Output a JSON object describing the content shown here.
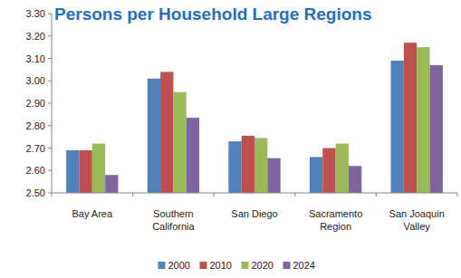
{
  "chart_data": {
    "type": "bar",
    "title": "Persons per Household Large Regions",
    "categories": [
      "Bay Area",
      "Southern California",
      "San Diego",
      "Sacramento Region",
      "San Joaquin Valley"
    ],
    "series": [
      {
        "name": "2000",
        "color": "#4f81bd",
        "values": [
          2.69,
          3.01,
          2.73,
          2.66,
          3.09
        ]
      },
      {
        "name": "2010",
        "color": "#c0504d",
        "values": [
          2.69,
          3.04,
          2.755,
          2.7,
          3.17
        ]
      },
      {
        "name": "2020",
        "color": "#9bbb59",
        "values": [
          2.72,
          2.95,
          2.745,
          2.72,
          3.15
        ]
      },
      {
        "name": "2024",
        "color": "#8064a2",
        "values": [
          2.58,
          2.835,
          2.655,
          2.62,
          3.07
        ]
      }
    ],
    "ylim": [
      2.5,
      3.3
    ],
    "yticks": [
      {
        "value": 2.5,
        "label": "2.50"
      },
      {
        "value": 2.6,
        "label": "2.60"
      },
      {
        "value": 2.7,
        "label": "2.70"
      },
      {
        "value": 2.8,
        "label": "2.80"
      },
      {
        "value": 2.9,
        "label": "2.90"
      },
      {
        "value": 3.0,
        "label": "3.00"
      },
      {
        "value": 3.1,
        "label": "3.10"
      },
      {
        "value": 3.2,
        "label": "3.20"
      },
      {
        "value": 3.3,
        "label": "3.30"
      }
    ],
    "grid": false,
    "legend": "bottom"
  }
}
